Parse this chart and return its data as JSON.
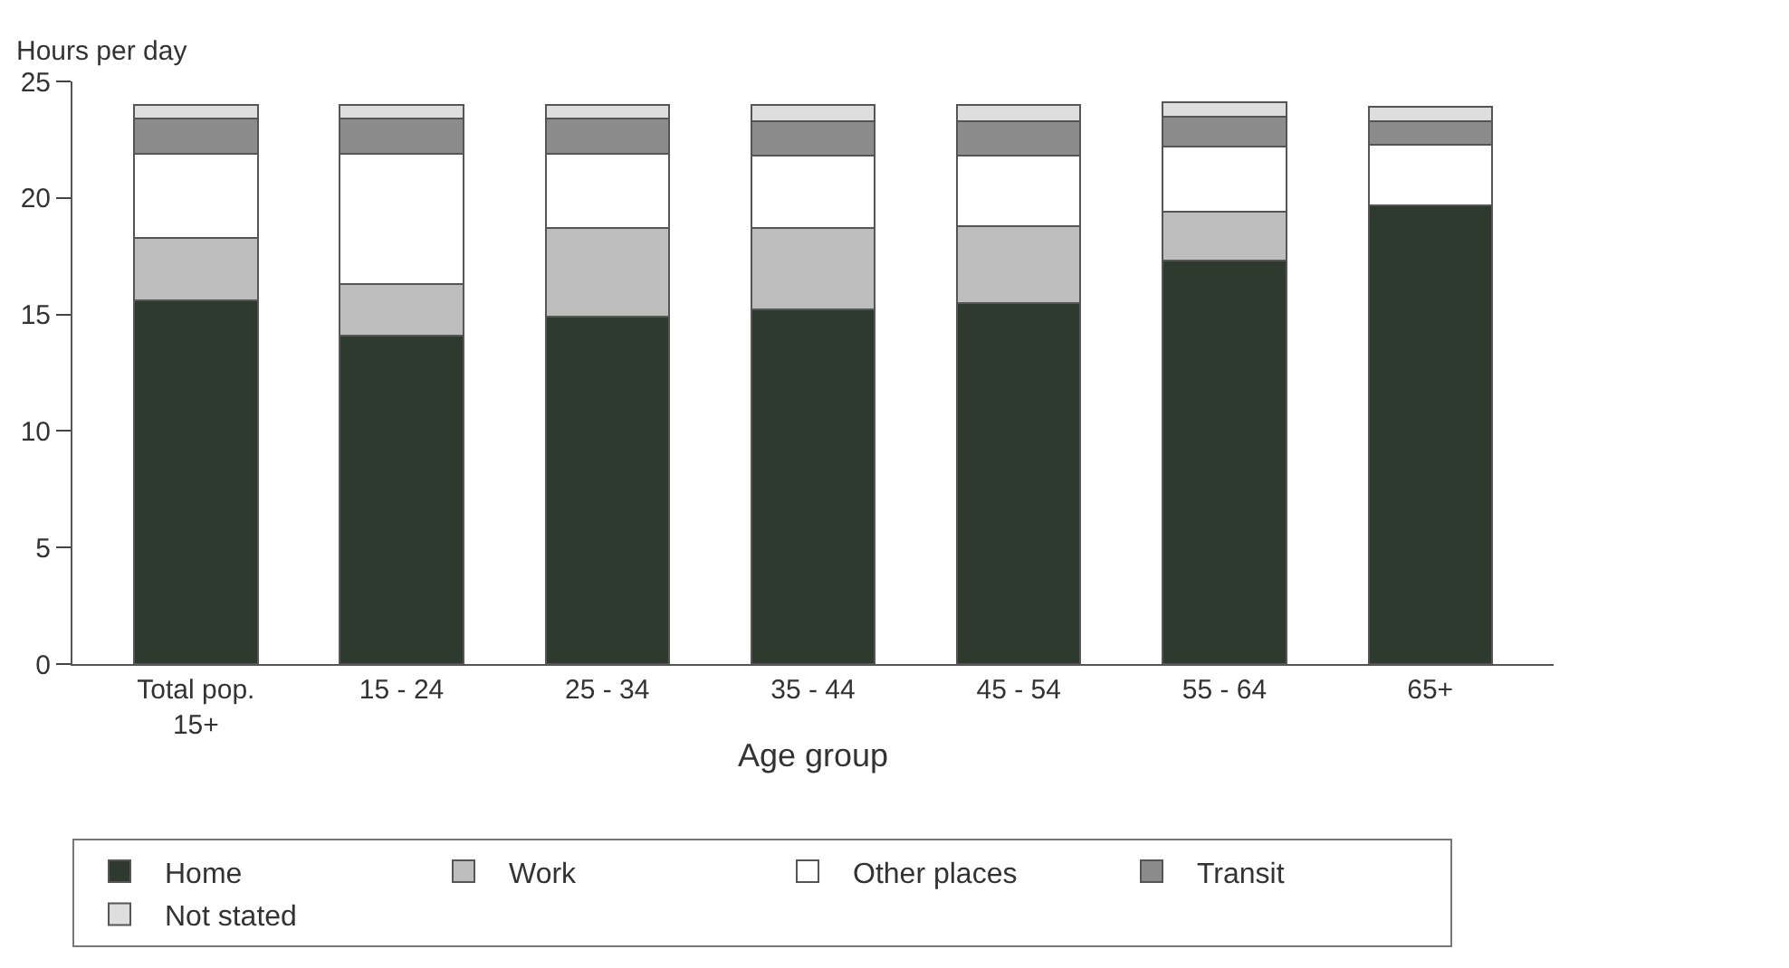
{
  "chart_data": {
    "type": "bar",
    "stacked": true,
    "ylabel": "Hours per day",
    "xlabel": "Age group",
    "categories": [
      "Total pop. 15+",
      "15 - 24",
      "25 - 34",
      "35 - 44",
      "45 - 54",
      "55 - 64",
      "65+"
    ],
    "series": [
      {
        "name": "Home",
        "color": "#2e3a2e",
        "values": [
          15.6,
          14.1,
          14.9,
          15.2,
          15.5,
          17.3,
          19.7
        ]
      },
      {
        "name": "Work",
        "color": "#bdbdbd",
        "values": [
          2.7,
          2.2,
          3.8,
          3.5,
          3.3,
          2.1,
          null
        ]
      },
      {
        "name": "Other places",
        "color": "#ffffff",
        "values": [
          3.6,
          5.6,
          3.2,
          3.1,
          3.0,
          2.8,
          2.6
        ]
      },
      {
        "name": "Transit",
        "color": "#8c8c8c",
        "values": [
          1.5,
          1.5,
          1.5,
          1.5,
          1.5,
          1.3,
          1.0
        ]
      },
      {
        "name": "Not stated",
        "color": "#dedede",
        "values": [
          0.6,
          0.6,
          0.6,
          0.7,
          0.7,
          0.6,
          0.6
        ]
      }
    ],
    "ylim": [
      0,
      25
    ],
    "yticks": [
      0,
      5,
      10,
      15,
      20,
      25
    ],
    "legend": "bottom"
  }
}
